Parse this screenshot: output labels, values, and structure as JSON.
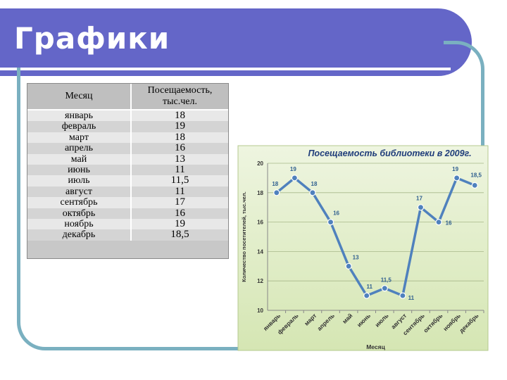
{
  "slide": {
    "title": "Графики"
  },
  "table": {
    "headers": [
      "Месяц",
      "Посещаемость, тыс.чел."
    ],
    "rows": [
      [
        "январь",
        "18"
      ],
      [
        "февраль",
        "19"
      ],
      [
        "март",
        "18"
      ],
      [
        "апрель",
        "16"
      ],
      [
        "май",
        "13"
      ],
      [
        "июнь",
        "11"
      ],
      [
        "июль",
        "11,5"
      ],
      [
        "август",
        "11"
      ],
      [
        "сентябрь",
        "17"
      ],
      [
        "октябрь",
        "16"
      ],
      [
        "ноябрь",
        "19"
      ],
      [
        "декабрь",
        "18,5"
      ]
    ]
  },
  "chart_data": {
    "type": "line",
    "title": "Посещаемость библиотеки в 2009г.",
    "xlabel": "Месяц",
    "ylabel": "Количество посетителей, тыс.чел.",
    "categories": [
      "январь",
      "февраль",
      "март",
      "апрель",
      "май",
      "июнь",
      "июль",
      "август",
      "сентябрь",
      "октябрь",
      "ноябрь",
      "декабрь"
    ],
    "values": [
      18,
      19,
      18,
      16,
      13,
      11,
      11.5,
      11,
      17,
      16,
      19,
      18.5
    ],
    "data_labels": [
      "18",
      "19",
      "18",
      "16",
      "13",
      "11",
      "11,5",
      "11",
      "17",
      "16",
      "19",
      "18,5"
    ],
    "ylim": [
      10,
      20
    ],
    "yticks": [
      "10",
      "12",
      "14",
      "16",
      "18",
      "20"
    ],
    "grid": true,
    "line_color": "#4f81bd",
    "title_color": "#1f3d7a",
    "background": "#d5e6b3"
  }
}
